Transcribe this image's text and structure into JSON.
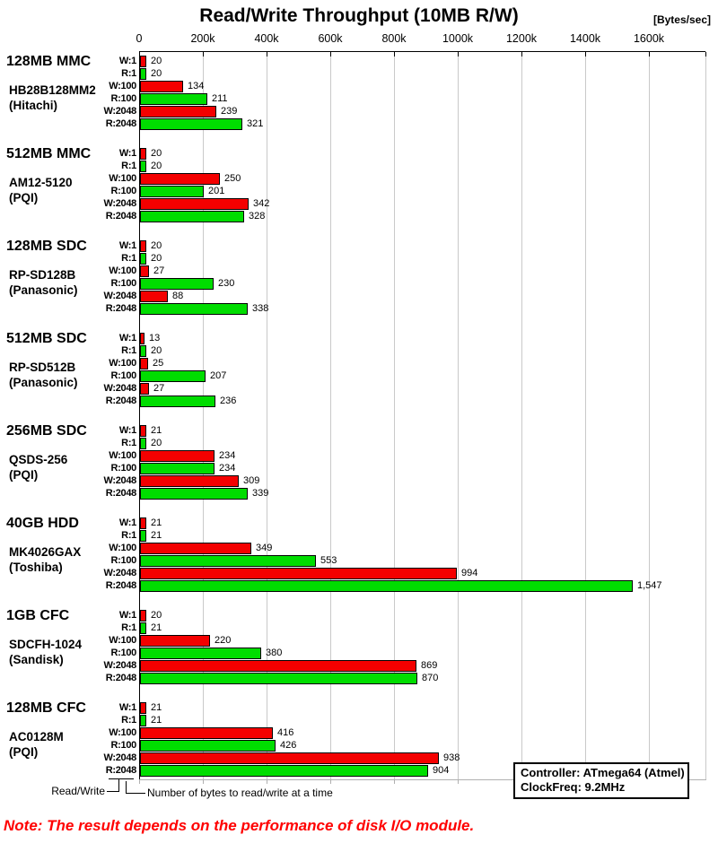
{
  "title": "Read/Write Throughput (10MB R/W)",
  "unit_label": "[Bytes/sec]",
  "legend": {
    "read_write": "Read/Write",
    "bytes_note": "Number of bytes to read/write at a time"
  },
  "info_box": {
    "controller": "Controller: ATmega64 (Atmel)",
    "clock": "ClockFreq: 9.2MHz"
  },
  "note": "Note: The result depends on the performance of disk I/O module.",
  "colors": {
    "write_bar": "#f40000",
    "read_bar": "#00dd00",
    "gridline": "#c9c9c9",
    "note_text": "#ff0000"
  },
  "chart_data": {
    "type": "bar",
    "orientation": "horizontal",
    "title": "Read/Write Throughput (10MB R/W)",
    "unit": "Bytes/sec",
    "x_ticks": [
      "0",
      "200k",
      "400k",
      "600k",
      "800k",
      "1000k",
      "1200k",
      "1400k",
      "1600k"
    ],
    "x_tick_values_k": [
      0,
      200,
      400,
      600,
      800,
      1000,
      1200,
      1400,
      1600
    ],
    "x_max_k": 1780,
    "grid": true,
    "row_labels": [
      "W:1",
      "R:1",
      "W:100",
      "R:100",
      "W:2048",
      "R:2048"
    ],
    "series_colors": {
      "write": "#f40000",
      "read": "#00dd00"
    },
    "groups": [
      {
        "name": "128MB MMC",
        "model": "HB28B128MM2",
        "maker": "(Hitachi)",
        "values_k": [
          20,
          20,
          134,
          211,
          239,
          321
        ],
        "value_labels": [
          "20",
          "20",
          "134",
          "211",
          "239",
          "321"
        ]
      },
      {
        "name": "512MB MMC",
        "model": "AM12-5120",
        "maker": "(PQI)",
        "values_k": [
          20,
          20,
          250,
          201,
          342,
          328
        ],
        "value_labels": [
          "20",
          "20",
          "250",
          "201",
          "342",
          "328"
        ]
      },
      {
        "name": "128MB SDC",
        "model": "RP-SD128B",
        "maker": "(Panasonic)",
        "values_k": [
          20,
          20,
          27,
          230,
          88,
          338
        ],
        "value_labels": [
          "20",
          "20",
          "27",
          "230",
          "88",
          "338"
        ]
      },
      {
        "name": "512MB SDC",
        "model": "RP-SD512B",
        "maker": "(Panasonic)",
        "values_k": [
          13,
          20,
          25,
          207,
          27,
          236
        ],
        "value_labels": [
          "13",
          "20",
          "25",
          "207",
          "27",
          "236"
        ]
      },
      {
        "name": "256MB SDC",
        "model": "QSDS-256",
        "maker": "(PQI)",
        "values_k": [
          21,
          20,
          234,
          234,
          309,
          339
        ],
        "value_labels": [
          "21",
          "20",
          "234",
          "234",
          "309",
          "339"
        ]
      },
      {
        "name": "40GB HDD",
        "model": "MK4026GAX",
        "maker": "(Toshiba)",
        "values_k": [
          21,
          21,
          349,
          553,
          994,
          1547
        ],
        "value_labels": [
          "21",
          "21",
          "349",
          "553",
          "994",
          "1,547"
        ]
      },
      {
        "name": "1GB CFC",
        "model": "SDCFH-1024",
        "maker": "(Sandisk)",
        "values_k": [
          20,
          21,
          220,
          380,
          869,
          870
        ],
        "value_labels": [
          "20",
          "21",
          "220",
          "380",
          "869",
          "870"
        ]
      },
      {
        "name": "128MB CFC",
        "model": "AC0128M",
        "maker": "(PQI)",
        "values_k": [
          21,
          21,
          416,
          426,
          938,
          904
        ],
        "value_labels": [
          "21",
          "21",
          "416",
          "426",
          "938",
          "904"
        ]
      }
    ]
  }
}
